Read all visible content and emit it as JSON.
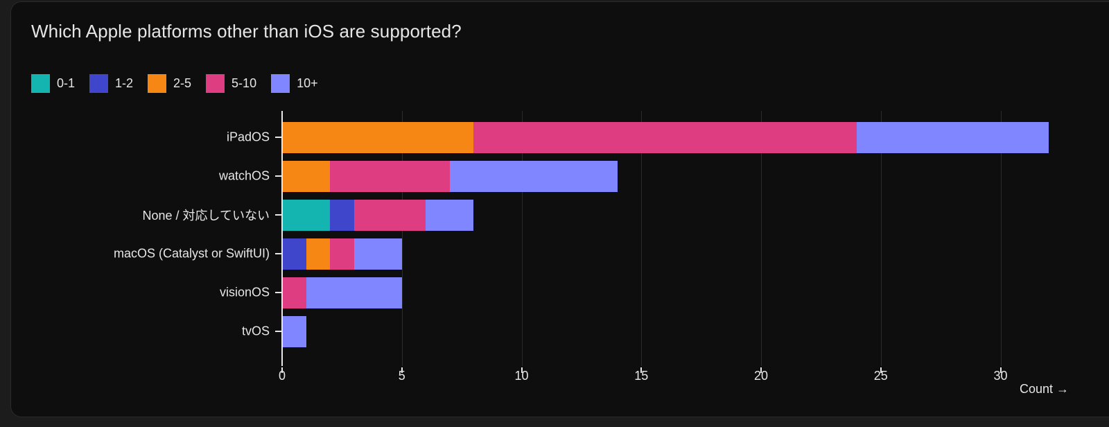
{
  "title": "Which Apple platforms other than iOS are supported?",
  "legend": [
    {
      "label": "0-1",
      "color": "#14b5b0"
    },
    {
      "label": "1-2",
      "color": "#4046cc"
    },
    {
      "label": "2-5",
      "color": "#f68715"
    },
    {
      "label": "5-10",
      "color": "#de3d82"
    },
    {
      "label": "10+",
      "color": "#7f86ff"
    }
  ],
  "x_axis": {
    "ticks": [
      "0",
      "5",
      "10",
      "15",
      "20",
      "25",
      "30"
    ],
    "label": "Count →"
  },
  "chart_data": {
    "type": "bar",
    "orientation": "horizontal",
    "stacked": true,
    "title": "Which Apple platforms other than iOS are supported?",
    "xlabel": "Count",
    "ylabel": "",
    "xlim": [
      0,
      32
    ],
    "x_ticks": [
      0,
      5,
      10,
      15,
      20,
      25,
      30
    ],
    "grid": true,
    "legend_position": "top-left",
    "categories": [
      "iPadOS",
      "watchOS",
      "None / 対応していない",
      "macOS (Catalyst or SwiftUI)",
      "visionOS",
      "tvOS"
    ],
    "series": [
      {
        "name": "0-1",
        "color": "#14b5b0",
        "values": [
          0,
          0,
          2,
          0,
          0,
          0
        ]
      },
      {
        "name": "1-2",
        "color": "#4046cc",
        "values": [
          0,
          0,
          1,
          1,
          0,
          0
        ]
      },
      {
        "name": "2-5",
        "color": "#f68715",
        "values": [
          8,
          2,
          0,
          1,
          0,
          0
        ]
      },
      {
        "name": "5-10",
        "color": "#de3d82",
        "values": [
          16,
          5,
          3,
          1,
          1,
          0
        ]
      },
      {
        "name": "10+",
        "color": "#7f86ff",
        "values": [
          8,
          7,
          2,
          2,
          4,
          1
        ]
      }
    ],
    "totals": [
      32,
      14,
      8,
      5,
      5,
      1
    ]
  }
}
